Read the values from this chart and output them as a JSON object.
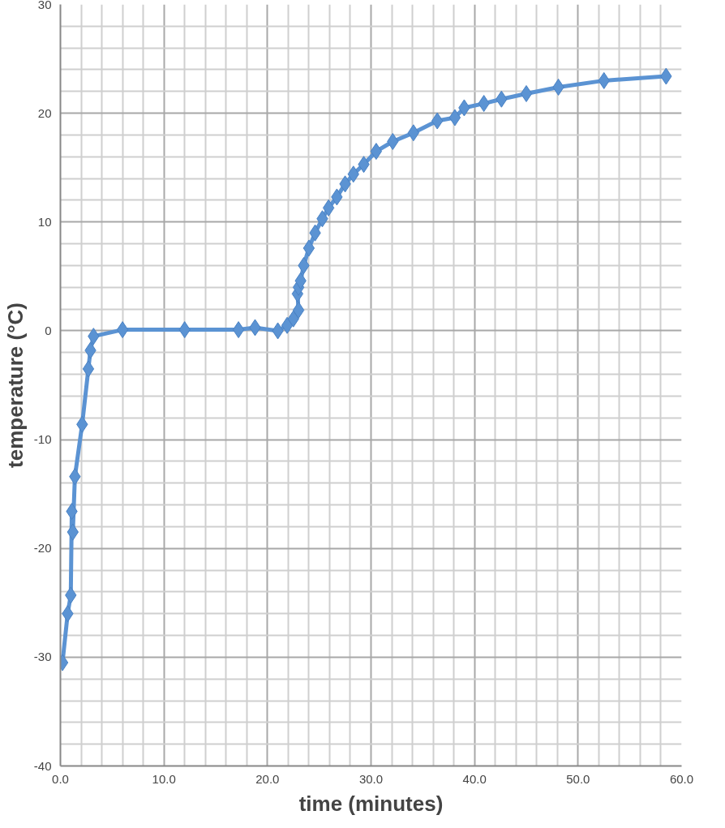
{
  "chart_data": {
    "type": "line",
    "xlabel": "time (minutes)",
    "ylabel": "temperature (°C)",
    "xlim": [
      0,
      60
    ],
    "ylim": [
      -40,
      30
    ],
    "xticks": [
      {
        "value": 0,
        "label": "0.0"
      },
      {
        "value": 10,
        "label": "10.0"
      },
      {
        "value": 20,
        "label": "20.0"
      },
      {
        "value": 30,
        "label": "30.0"
      },
      {
        "value": 40,
        "label": "40.0"
      },
      {
        "value": 50,
        "label": "50.0"
      },
      {
        "value": 60,
        "label": "60.0"
      }
    ],
    "yticks": [
      -40,
      -30,
      -20,
      -10,
      0,
      10,
      20,
      30
    ],
    "grid": true,
    "marker": "diamond",
    "line_style": "solid",
    "series": [
      {
        "color": "#5b93d3",
        "x": [
          0.2,
          0.7,
          1.0,
          1.1,
          1.2,
          1.4,
          2.1,
          2.7,
          2.9,
          3.2,
          6.0,
          12.0,
          17.2,
          18.8,
          21.0,
          21.9,
          22.5,
          23.0,
          22.9,
          23.0,
          23.2,
          23.5,
          24.0,
          24.6,
          25.3,
          25.9,
          26.7,
          27.5,
          28.3,
          29.3,
          30.5,
          32.1,
          34.1,
          36.4,
          38.1,
          39.0,
          40.9,
          42.6,
          45.0,
          48.1,
          52.5,
          58.5
        ],
        "values": [
          -30.5,
          -26.0,
          -24.3,
          -16.6,
          -18.5,
          -13.4,
          -8.6,
          -3.5,
          -1.8,
          -0.5,
          0.1,
          0.1,
          0.1,
          0.3,
          0.0,
          0.5,
          1.1,
          1.9,
          3.4,
          4.0,
          4.6,
          6.0,
          7.6,
          9.0,
          10.3,
          11.3,
          12.3,
          13.5,
          14.4,
          15.3,
          16.5,
          17.4,
          18.2,
          19.3,
          19.6,
          20.5,
          20.9,
          21.3,
          21.8,
          22.4,
          23.0,
          23.4
        ]
      }
    ]
  }
}
